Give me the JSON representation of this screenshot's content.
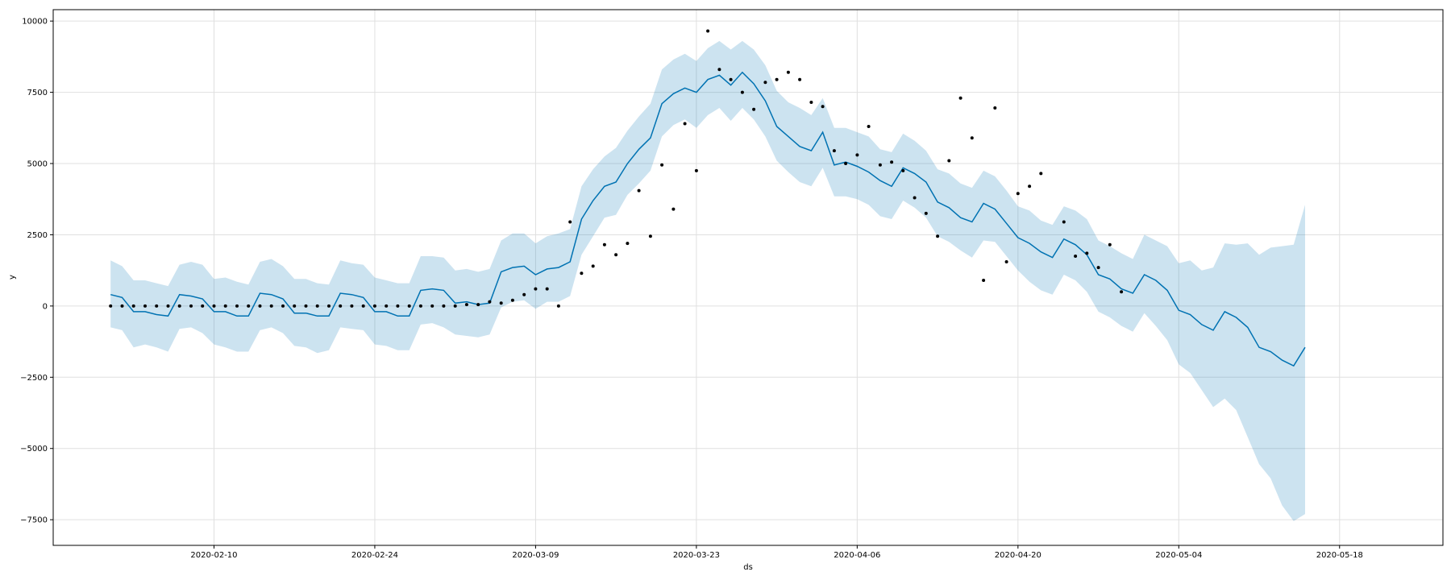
{
  "chart_data": {
    "type": "line",
    "title": "",
    "xlabel": "ds",
    "ylabel": "y",
    "x_start": "2020-02-01",
    "ylim": [
      -8400,
      10400
    ],
    "xlim": [
      "2020-01-27",
      "2020-05-27"
    ],
    "grid": true,
    "x_ticks": [
      "2020-02-10",
      "2020-02-24",
      "2020-03-09",
      "2020-03-23",
      "2020-04-06",
      "2020-04-20",
      "2020-05-04",
      "2020-05-18"
    ],
    "y_ticks": [
      -7500,
      -5000,
      -2500,
      0,
      2500,
      5000,
      7500,
      10000
    ],
    "y_tick_labels": [
      "−7500",
      "−5000",
      "−2500",
      "0",
      "2500",
      "5000",
      "7500",
      "10000"
    ],
    "colors": {
      "forecast": "#0072B2",
      "interval": "#0072B2",
      "observed": "#000000",
      "grid": "#e0e0e0"
    },
    "series": [
      {
        "kind": "observed",
        "values": [
          0,
          0,
          0,
          0,
          0,
          0,
          0,
          0,
          0,
          0,
          0,
          0,
          0,
          0,
          0,
          0,
          0,
          0,
          0,
          0,
          0,
          0,
          0,
          0,
          0,
          0,
          0,
          0,
          0,
          0,
          0,
          50,
          50,
          150,
          100,
          200,
          400,
          600,
          600,
          0,
          2950,
          1150,
          1400,
          2150,
          1800,
          2200,
          4050,
          2450,
          4950,
          3400,
          6400,
          4750,
          9650,
          8300,
          7950,
          7500,
          6900,
          7850,
          7950,
          8200,
          7950,
          7150,
          7000,
          5450,
          5000,
          5300,
          6300,
          4950,
          5050,
          4750,
          3800,
          3250,
          2450,
          5100,
          7300,
          5900,
          900,
          6950,
          1550,
          3950,
          4200,
          4650,
          null,
          2950,
          1750,
          1850,
          1350,
          2150,
          500
        ]
      },
      {
        "kind": "forecast",
        "values": [
          400,
          300,
          -200,
          -200,
          -300,
          -350,
          400,
          350,
          250,
          -200,
          -200,
          -350,
          -350,
          450,
          400,
          250,
          -250,
          -250,
          -350,
          -350,
          450,
          400,
          300,
          -200,
          -200,
          -350,
          -350,
          550,
          600,
          550,
          100,
          150,
          50,
          100,
          1200,
          1350,
          1400,
          1100,
          1300,
          1350,
          1550,
          3050,
          3700,
          4200,
          4350,
          5000,
          5500,
          5900,
          7100,
          7450,
          7650,
          7500,
          7950,
          8100,
          7750,
          8200,
          7800,
          7200,
          6300,
          5950,
          5600,
          5450,
          6100,
          4950,
          5050,
          4900,
          4700,
          4400,
          4200,
          4850,
          4650,
          4350,
          3650,
          3450,
          3100,
          2950,
          3600,
          3400,
          2900,
          2400,
          2200,
          1900,
          1700,
          2350,
          2150,
          1800,
          1100,
          950,
          600,
          450,
          1100,
          900,
          550,
          -150,
          -300,
          -650,
          -850,
          -200,
          -400,
          -750,
          -1450,
          -1600,
          -1900,
          -2100,
          -1450
        ]
      },
      {
        "kind": "interval_upper",
        "values": [
          1600,
          1400,
          900,
          900,
          800,
          700,
          1450,
          1550,
          1450,
          950,
          1000,
          850,
          750,
          1550,
          1650,
          1400,
          950,
          950,
          800,
          750,
          1600,
          1500,
          1450,
          1000,
          900,
          800,
          800,
          1750,
          1750,
          1700,
          1250,
          1300,
          1200,
          1300,
          2300,
          2550,
          2550,
          2200,
          2450,
          2550,
          2700,
          4200,
          4800,
          5250,
          5550,
          6150,
          6650,
          7100,
          8300,
          8650,
          8850,
          8600,
          9050,
          9300,
          9000,
          9300,
          9000,
          8450,
          7550,
          7150,
          6950,
          6700,
          7300,
          6250,
          6250,
          6100,
          5950,
          5500,
          5400,
          6050,
          5800,
          5450,
          4800,
          4650,
          4300,
          4150,
          4750,
          4550,
          4050,
          3500,
          3350,
          3000,
          2850,
          3500,
          3350,
          3050,
          2300,
          2100,
          1850,
          1650,
          2500,
          2300,
          2100,
          1500,
          1600,
          1250,
          1350,
          2200,
          2150,
          2200,
          1800,
          2050,
          2100,
          2150,
          3550
        ]
      },
      {
        "kind": "interval_lower",
        "values": [
          -750,
          -850,
          -1450,
          -1350,
          -1450,
          -1600,
          -800,
          -750,
          -950,
          -1350,
          -1450,
          -1600,
          -1600,
          -850,
          -750,
          -950,
          -1400,
          -1450,
          -1650,
          -1550,
          -750,
          -800,
          -850,
          -1350,
          -1400,
          -1550,
          -1550,
          -650,
          -600,
          -750,
          -1000,
          -1050,
          -1100,
          -1000,
          -50,
          150,
          200,
          -100,
          150,
          150,
          350,
          1800,
          2450,
          3100,
          3200,
          3900,
          4300,
          4750,
          5950,
          6350,
          6550,
          6250,
          6700,
          6950,
          6500,
          6950,
          6550,
          5950,
          5100,
          4700,
          4350,
          4200,
          4850,
          3850,
          3850,
          3750,
          3550,
          3150,
          3050,
          3700,
          3450,
          3100,
          2450,
          2250,
          1950,
          1700,
          2300,
          2250,
          1750,
          1250,
          850,
          550,
          400,
          1100,
          900,
          500,
          -200,
          -400,
          -700,
          -900,
          -250,
          -700,
          -1200,
          -2050,
          -2350,
          -2950,
          -3550,
          -3250,
          -3650,
          -4600,
          -5550,
          -6050,
          -7000,
          -7550,
          -7300
        ]
      }
    ]
  }
}
